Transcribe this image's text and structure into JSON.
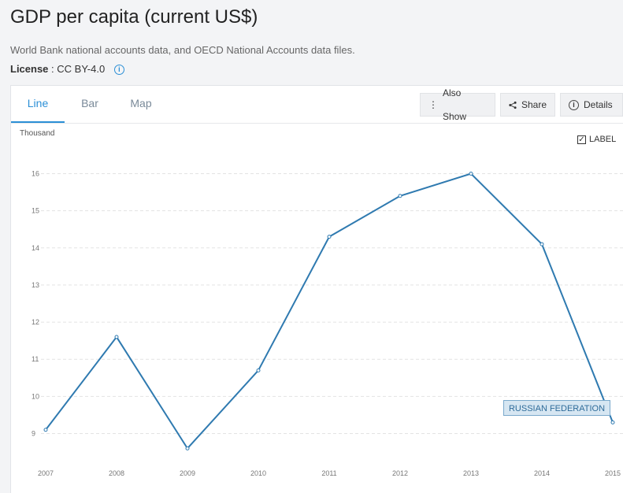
{
  "header": {
    "title": "GDP per capita (current US$)",
    "source": "World Bank national accounts data, and OECD National Accounts data files.",
    "license_label": "License",
    "license_value": ": CC BY-4.0"
  },
  "tabs": [
    {
      "label": "Line",
      "active": true
    },
    {
      "label": "Bar",
      "active": false
    },
    {
      "label": "Map",
      "active": false
    }
  ],
  "toolbar": {
    "also_show": "Also Show",
    "share": "Share",
    "details": "Details"
  },
  "label_toggle": {
    "text": "LABEL",
    "checked": true
  },
  "colors": {
    "line": "#2f7ab0",
    "accent": "#2b8fd6"
  },
  "chart_data": {
    "type": "line",
    "title": "GDP per capita (current US$)",
    "ylabel": "Thousand",
    "xlabel": "",
    "x": [
      "2007",
      "2008",
      "2009",
      "2010",
      "2011",
      "2012",
      "2013",
      "2014",
      "2015"
    ],
    "series": [
      {
        "name": "RUSSIAN FEDERATION",
        "values": [
          9.1,
          11.6,
          8.6,
          10.7,
          14.3,
          15.4,
          16.0,
          14.1,
          9.3
        ]
      }
    ],
    "yticks": [
      9,
      10,
      11,
      12,
      13,
      14,
      15,
      16
    ],
    "ylim": [
      8.2,
      16.6
    ],
    "grid": true,
    "legend": "label-at-end"
  }
}
